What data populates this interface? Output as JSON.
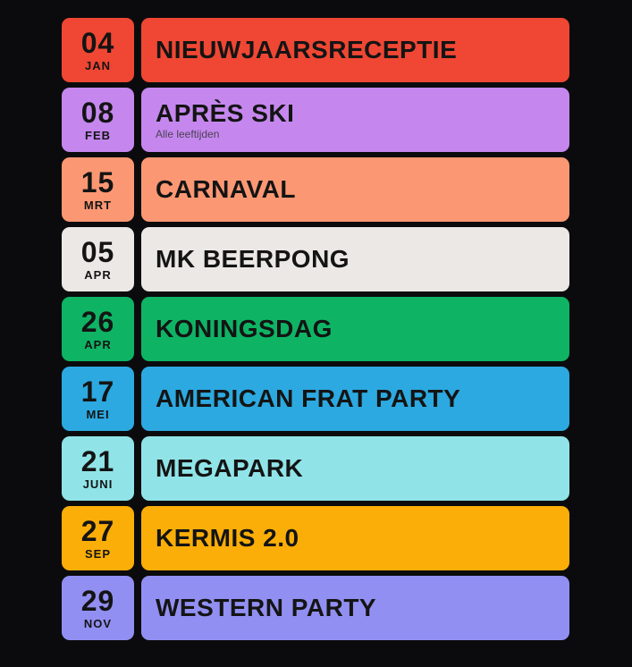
{
  "page": {
    "background_color": "#0b0b0d",
    "text_color": "#141414",
    "subtitle_color": "#4a4254"
  },
  "events": [
    {
      "day": "04",
      "month": "JAN",
      "title": "NIEUWJAARSRECEPTIE",
      "subtitle": "",
      "color": "#ef4733"
    },
    {
      "day": "08",
      "month": "FEB",
      "title": "APRÈS SKI",
      "subtitle": "Alle leeftijden",
      "color": "#c587ee"
    },
    {
      "day": "15",
      "month": "MRT",
      "title": "CARNAVAL",
      "subtitle": "",
      "color": "#fb9873"
    },
    {
      "day": "05",
      "month": "APR",
      "title": "MK BEERPONG",
      "subtitle": "",
      "color": "#ece8e5"
    },
    {
      "day": "26",
      "month": "APR",
      "title": "KONINGSDAG",
      "subtitle": "",
      "color": "#0eb464"
    },
    {
      "day": "17",
      "month": "MEI",
      "title": "AMERICAN FRAT PARTY",
      "subtitle": "",
      "color": "#2ca9e0"
    },
    {
      "day": "21",
      "month": "JUNI",
      "title": "MEGAPARK",
      "subtitle": "",
      "color": "#90e4e8"
    },
    {
      "day": "27",
      "month": "SEP",
      "title": "KERMIS 2.0",
      "subtitle": "",
      "color": "#fbae08"
    },
    {
      "day": "29",
      "month": "NOV",
      "title": "WESTERN PARTY",
      "subtitle": "",
      "color": "#928ff2"
    }
  ]
}
